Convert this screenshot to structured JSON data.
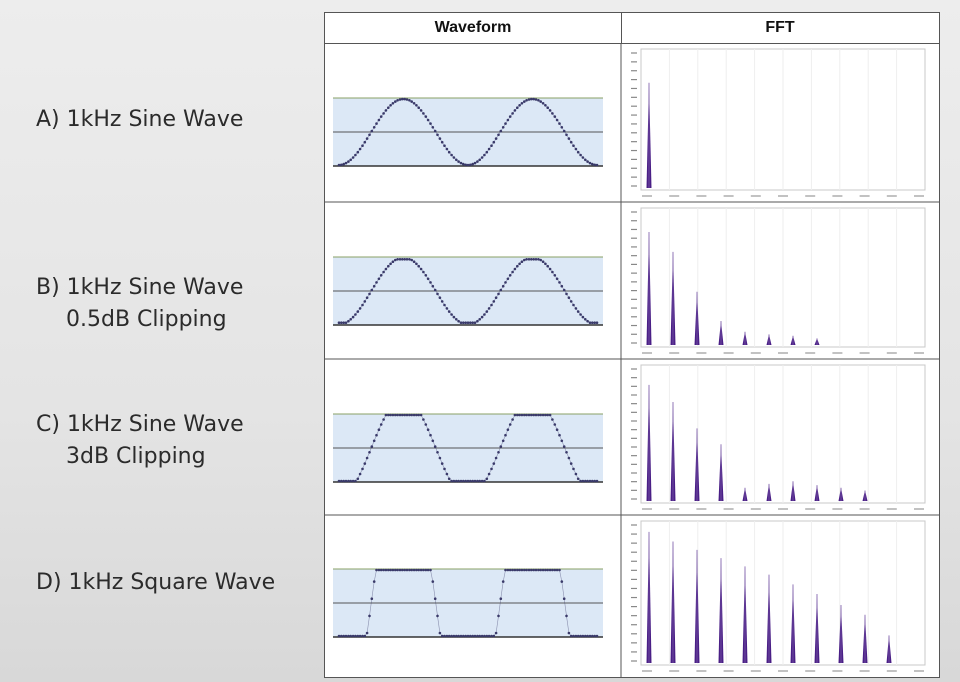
{
  "headers": {
    "waveform": "Waveform",
    "fft": "FFT"
  },
  "rows": [
    {
      "id": "A",
      "label_line1": "A) 1kHz Sine Wave",
      "label_line2": "",
      "waveform": "sine",
      "fft_harmonics": [
        [
          1,
          0.78
        ]
      ]
    },
    {
      "id": "B",
      "label_line1": "B) 1kHz Sine Wave",
      "label_line2": "0.5dB Clipping",
      "waveform": "soft-clip",
      "fft_harmonics": [
        [
          1,
          0.85
        ],
        [
          3,
          0.7
        ],
        [
          5,
          0.4
        ],
        [
          7,
          0.18
        ],
        [
          9,
          0.1
        ],
        [
          11,
          0.08
        ],
        [
          13,
          0.07
        ],
        [
          15,
          0.05
        ]
      ]
    },
    {
      "id": "C",
      "label_line1": "C) 1kHz Sine Wave",
      "label_line2": "3dB Clipping",
      "waveform": "hard-clip",
      "fft_harmonics": [
        [
          1,
          0.88
        ],
        [
          3,
          0.75
        ],
        [
          5,
          0.55
        ],
        [
          7,
          0.43
        ],
        [
          9,
          0.1
        ],
        [
          11,
          0.13
        ],
        [
          13,
          0.15
        ],
        [
          15,
          0.12
        ],
        [
          17,
          0.1
        ],
        [
          19,
          0.08
        ]
      ]
    },
    {
      "id": "D",
      "label_line1": "D) 1kHz Square Wave",
      "label_line2": "",
      "waveform": "square",
      "fft_harmonics": [
        [
          1,
          0.95
        ],
        [
          3,
          0.88
        ],
        [
          5,
          0.82
        ],
        [
          7,
          0.76
        ],
        [
          9,
          0.7
        ],
        [
          11,
          0.64
        ],
        [
          13,
          0.57
        ],
        [
          15,
          0.5
        ],
        [
          17,
          0.42
        ],
        [
          19,
          0.35
        ],
        [
          21,
          0.2
        ]
      ]
    }
  ],
  "colors": {
    "band_fill": "#dce8f6",
    "grid_line": "#555555",
    "top_line": "#8aa066",
    "wave_dot": "#3a3a6a",
    "fft_bar": "#4a1f86"
  }
}
